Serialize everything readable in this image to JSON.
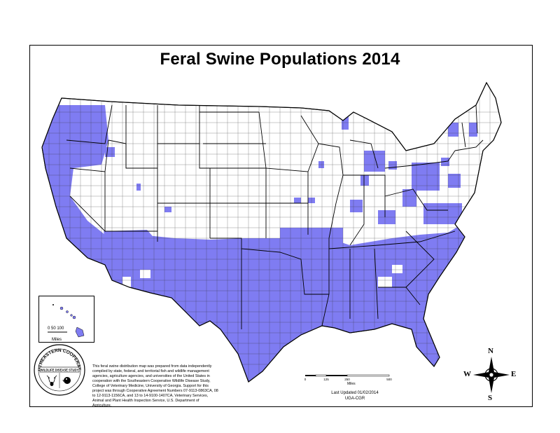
{
  "title": "Feral Swine Populations 2014",
  "colors": {
    "population": "#7f7cf2",
    "background": "#ffffff",
    "border": "#000000"
  },
  "hawaii_inset": {
    "scale_labels": "0   50  100",
    "unit": "Miles"
  },
  "seal": {
    "top_text": "SOUTHEASTERN COOPERATIVE",
    "bottom_text": "WILDLIFE DISEASE STUDY",
    "icons": [
      "deer-icon",
      "bird-icon"
    ]
  },
  "disclaimer": "This feral swine distribution map was prepared from data independently compiled by state, federal, and territorial fish and wildlife management agencies, agriculture agencies, and universities of the United States in cooperation with the Southeastern Cooperative Wildlife Disease Study, College of Veterinary Medicine, University of Georgia. Support for this project was through Cooperative Agreement Numbers 07-9113-0863CA, 08 to 12-9113-1156CA, and 13 to 14-9100-1407CA, Veterinary Services, Animal and Plant Health Inspection Service, U.S. Department of Agriculture.",
  "scale_bar": {
    "ticks": [
      "0",
      "125",
      "250",
      "500"
    ],
    "unit": "Miles"
  },
  "updated": {
    "line1": "Last Updated 01/02/2014",
    "line2": "UGA-CGR"
  },
  "compass": {
    "n": "N",
    "s": "S",
    "e": "E",
    "w": "W"
  }
}
